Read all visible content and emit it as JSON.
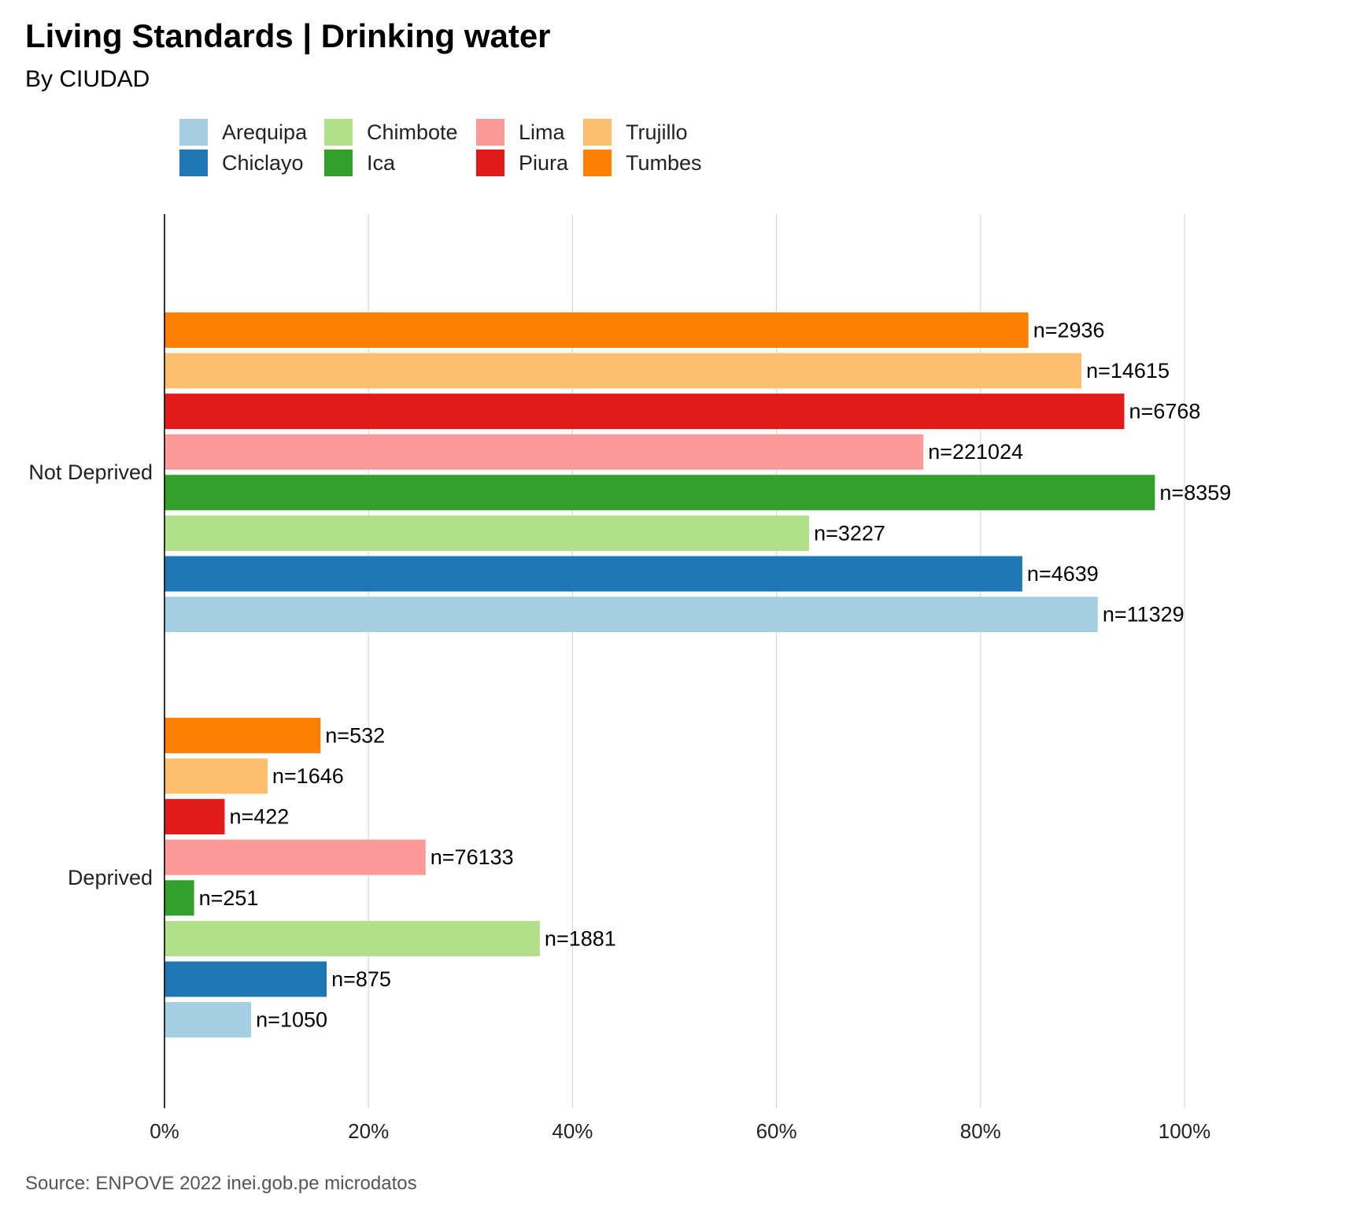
{
  "chart_data": {
    "type": "bar",
    "orientation": "horizontal",
    "title": "Living Standards | Drinking water",
    "subtitle": "By CIUDAD",
    "source": "Source: ENPOVE 2022 inei.gob.pe microdatos",
    "xlabel": "",
    "ylabel": "",
    "xlim": [
      0,
      1
    ],
    "x_ticks": [
      "0%",
      "20%",
      "40%",
      "60%",
      "80%",
      "100%"
    ],
    "grid": true,
    "legend_position": "top",
    "categories": [
      "Not Deprived",
      "Deprived"
    ],
    "series": [
      {
        "name": "Arequipa",
        "color": "#A6CEE3",
        "values": [
          0.915,
          0.085
        ],
        "labels": [
          "n=11329",
          "n=1050"
        ]
      },
      {
        "name": "Chiclayo",
        "color": "#1F78B4",
        "values": [
          0.841,
          0.159
        ],
        "labels": [
          "n=4639",
          "n=875"
        ]
      },
      {
        "name": "Chimbote",
        "color": "#B2DF8A",
        "values": [
          0.632,
          0.368
        ],
        "labels": [
          "n=3227",
          "n=1881"
        ]
      },
      {
        "name": "Ica",
        "color": "#33A02C",
        "values": [
          0.971,
          0.029
        ],
        "labels": [
          "n=8359",
          "n=251"
        ]
      },
      {
        "name": "Lima",
        "color": "#FB9A99",
        "values": [
          0.744,
          0.256
        ],
        "labels": [
          "n=221024",
          "n=76133"
        ]
      },
      {
        "name": "Piura",
        "color": "#E31A1C",
        "values": [
          0.941,
          0.059
        ],
        "labels": [
          "n=6768",
          "n=422"
        ]
      },
      {
        "name": "Trujillo",
        "color": "#FDBF6F",
        "values": [
          0.899,
          0.101
        ],
        "labels": [
          "n=14615",
          "n=1646"
        ]
      },
      {
        "name": "Tumbes",
        "color": "#FF7F00",
        "values": [
          0.847,
          0.153
        ],
        "labels": [
          "n=2936",
          "n=532"
        ]
      }
    ]
  }
}
